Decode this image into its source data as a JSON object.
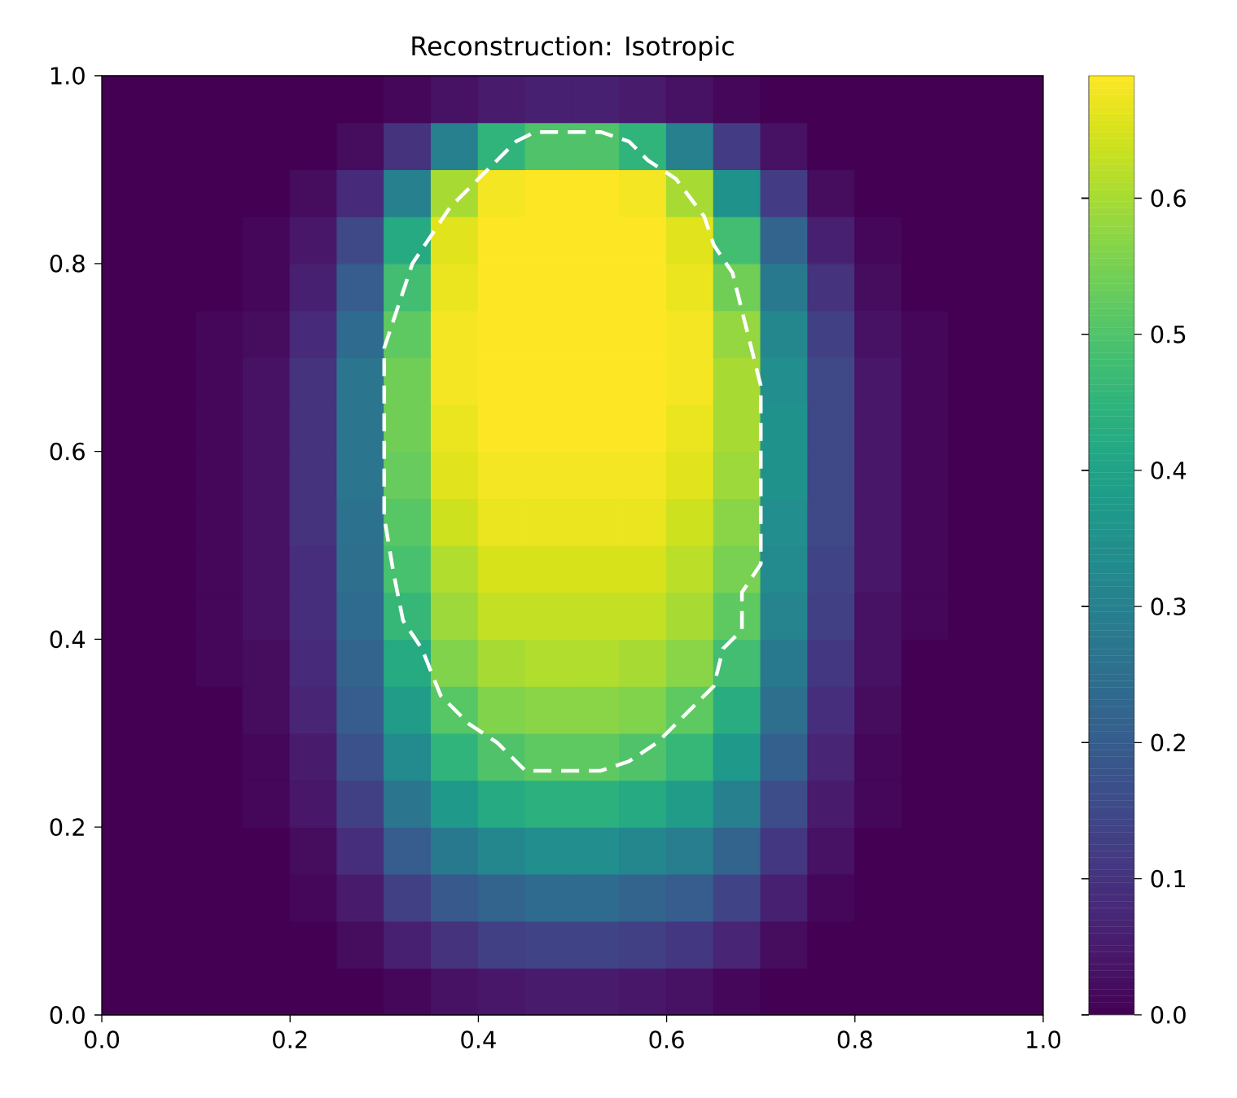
{
  "chart_data": {
    "type": "heatmap",
    "title": "Reconstruction: Isotropic",
    "x": [
      0.025,
      0.075,
      0.125,
      0.175,
      0.225,
      0.275,
      0.325,
      0.375,
      0.425,
      0.475,
      0.525,
      0.575,
      0.625,
      0.675,
      0.725,
      0.775,
      0.825,
      0.875,
      0.925,
      0.975
    ],
    "y": [
      0.975,
      0.925,
      0.875,
      0.825,
      0.775,
      0.725,
      0.675,
      0.625,
      0.575,
      0.525,
      0.475,
      0.425,
      0.375,
      0.325,
      0.275,
      0.225,
      0.175,
      0.125,
      0.075,
      0.025
    ],
    "cells": [
      [
        0,
        0,
        0,
        0,
        0,
        0,
        0.01,
        0.03,
        0.05,
        0.06,
        0.06,
        0.05,
        0.03,
        0.01,
        0,
        0,
        0,
        0,
        0,
        0
      ],
      [
        0,
        0,
        0,
        0,
        0,
        0.02,
        0.1,
        0.3,
        0.45,
        0.5,
        0.5,
        0.45,
        0.3,
        0.12,
        0.03,
        0,
        0,
        0,
        0,
        0
      ],
      [
        0,
        0,
        0,
        0,
        0.02,
        0.08,
        0.3,
        0.6,
        0.68,
        0.69,
        0.69,
        0.68,
        0.6,
        0.35,
        0.12,
        0.02,
        0,
        0,
        0,
        0
      ],
      [
        0,
        0,
        0,
        0.01,
        0.04,
        0.15,
        0.42,
        0.66,
        0.69,
        0.69,
        0.69,
        0.69,
        0.66,
        0.48,
        0.22,
        0.06,
        0.01,
        0,
        0,
        0
      ],
      [
        0,
        0,
        0,
        0.01,
        0.06,
        0.2,
        0.48,
        0.67,
        0.69,
        0.69,
        0.69,
        0.69,
        0.67,
        0.54,
        0.28,
        0.1,
        0.02,
        0,
        0,
        0
      ],
      [
        0,
        0,
        0.01,
        0.02,
        0.08,
        0.24,
        0.52,
        0.68,
        0.69,
        0.69,
        0.69,
        0.69,
        0.68,
        0.58,
        0.32,
        0.13,
        0.03,
        0.01,
        0,
        0
      ],
      [
        0,
        0,
        0.01,
        0.03,
        0.1,
        0.27,
        0.54,
        0.68,
        0.69,
        0.69,
        0.69,
        0.69,
        0.68,
        0.6,
        0.34,
        0.15,
        0.04,
        0.01,
        0,
        0
      ],
      [
        0,
        0,
        0.01,
        0.03,
        0.1,
        0.27,
        0.54,
        0.67,
        0.69,
        0.69,
        0.69,
        0.69,
        0.67,
        0.6,
        0.35,
        0.15,
        0.04,
        0.01,
        0,
        0
      ],
      [
        0,
        0,
        0.01,
        0.03,
        0.1,
        0.27,
        0.53,
        0.66,
        0.68,
        0.68,
        0.68,
        0.68,
        0.66,
        0.59,
        0.35,
        0.15,
        0.04,
        0.01,
        0,
        0
      ],
      [
        0,
        0,
        0.01,
        0.03,
        0.1,
        0.26,
        0.51,
        0.64,
        0.67,
        0.67,
        0.67,
        0.67,
        0.64,
        0.57,
        0.34,
        0.15,
        0.04,
        0.01,
        0,
        0
      ],
      [
        0,
        0,
        0.01,
        0.03,
        0.09,
        0.25,
        0.49,
        0.61,
        0.65,
        0.65,
        0.65,
        0.65,
        0.62,
        0.55,
        0.33,
        0.14,
        0.04,
        0.01,
        0,
        0
      ],
      [
        0,
        0,
        0.01,
        0.03,
        0.09,
        0.24,
        0.46,
        0.59,
        0.63,
        0.63,
        0.63,
        0.63,
        0.6,
        0.52,
        0.31,
        0.13,
        0.03,
        0.01,
        0,
        0
      ],
      [
        0,
        0,
        0.01,
        0.02,
        0.08,
        0.22,
        0.42,
        0.56,
        0.6,
        0.61,
        0.61,
        0.6,
        0.57,
        0.48,
        0.28,
        0.11,
        0.03,
        0,
        0,
        0
      ],
      [
        0,
        0,
        0,
        0.02,
        0.07,
        0.2,
        0.38,
        0.51,
        0.56,
        0.57,
        0.57,
        0.56,
        0.52,
        0.43,
        0.25,
        0.09,
        0.02,
        0,
        0,
        0
      ],
      [
        0,
        0,
        0,
        0.01,
        0.05,
        0.17,
        0.33,
        0.45,
        0.5,
        0.52,
        0.52,
        0.5,
        0.46,
        0.37,
        0.21,
        0.07,
        0.01,
        0,
        0,
        0
      ],
      [
        0,
        0,
        0,
        0.01,
        0.04,
        0.13,
        0.27,
        0.37,
        0.42,
        0.44,
        0.44,
        0.42,
        0.38,
        0.3,
        0.16,
        0.05,
        0.01,
        0,
        0,
        0
      ],
      [
        0,
        0,
        0,
        0,
        0.02,
        0.09,
        0.2,
        0.28,
        0.32,
        0.34,
        0.34,
        0.32,
        0.29,
        0.22,
        0.11,
        0.03,
        0,
        0,
        0,
        0
      ],
      [
        0,
        0,
        0,
        0,
        0.01,
        0.05,
        0.13,
        0.19,
        0.22,
        0.24,
        0.24,
        0.22,
        0.2,
        0.14,
        0.06,
        0.01,
        0,
        0,
        0,
        0
      ],
      [
        0,
        0,
        0,
        0,
        0,
        0.02,
        0.06,
        0.1,
        0.13,
        0.14,
        0.14,
        0.13,
        0.11,
        0.07,
        0.02,
        0,
        0,
        0,
        0,
        0
      ],
      [
        0,
        0,
        0,
        0,
        0,
        0,
        0.01,
        0.03,
        0.04,
        0.05,
        0.05,
        0.04,
        0.03,
        0.01,
        0,
        0,
        0,
        0,
        0,
        0
      ]
    ],
    "clim": [
      0,
      0.69
    ],
    "cticks": [
      {
        "value": 0,
        "label": "0.0"
      },
      {
        "value": 0.1,
        "label": "0.1"
      },
      {
        "value": 0.2,
        "label": "0.2"
      },
      {
        "value": 0.3,
        "label": "0.3"
      },
      {
        "value": 0.4,
        "label": "0.4"
      },
      {
        "value": 0.5,
        "label": "0.5"
      },
      {
        "value": 0.6,
        "label": "0.6"
      }
    ],
    "xlim": [
      0,
      1
    ],
    "ylim": [
      0,
      1
    ],
    "xticks": [
      {
        "value": 0,
        "label": "0.0"
      },
      {
        "value": 0.2,
        "label": "0.2"
      },
      {
        "value": 0.4,
        "label": "0.4"
      },
      {
        "value": 0.6,
        "label": "0.6"
      },
      {
        "value": 0.8,
        "label": "0.8"
      },
      {
        "value": 1,
        "label": "1.0"
      }
    ],
    "yticks": [
      {
        "value": 0,
        "label": "0.0"
      },
      {
        "value": 0.2,
        "label": "0.2"
      },
      {
        "value": 0.4,
        "label": "0.4"
      },
      {
        "value": 0.6,
        "label": "0.6"
      },
      {
        "value": 0.8,
        "label": "0.8"
      },
      {
        "value": 1,
        "label": "1.0"
      }
    ]
  }
}
